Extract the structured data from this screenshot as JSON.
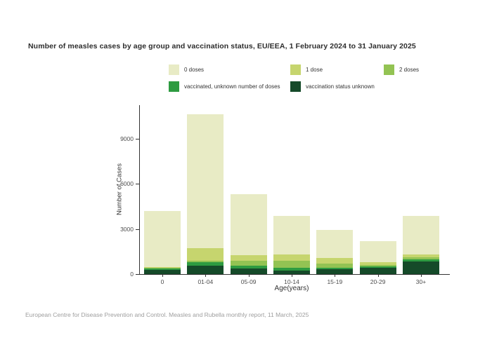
{
  "title": "Number of measles cases by age group and vaccination status, EU/EEA, 1 February 2024 to 31 January 2025",
  "footer": "European Centre for Disease Prevention and Control. Measles and Rubella monthly report, 11 March, 2025",
  "chart_data": {
    "type": "bar",
    "stacked": true,
    "title": "Number of measles cases by age group and vaccination status, EU/EEA, 1 February 2024 to 31 January 2025",
    "xlabel": "Age(years)",
    "ylabel": "Number of Cases",
    "categories": [
      "0",
      "01-04",
      "05-09",
      "10-14",
      "15-19",
      "20-29",
      "30+"
    ],
    "yticks": [
      0,
      3000,
      6000,
      9000
    ],
    "ylim": [
      0,
      11200
    ],
    "grid": false,
    "legend_position": "top",
    "series": [
      {
        "name": "0 doses",
        "color": "#e8ebc5",
        "values": [
          3745,
          8930,
          4050,
          2600,
          1895,
          1415,
          2555
        ]
      },
      {
        "name": "1 dose",
        "color": "#c6d56e",
        "values": [
          30,
          850,
          370,
          420,
          370,
          190,
          185
        ]
      },
      {
        "name": "2 doses",
        "color": "#93c353",
        "values": [
          25,
          90,
          330,
          460,
          280,
          95,
          140
        ]
      },
      {
        "name": "vaccinated, unknown number of doses",
        "color": "#2e9b41",
        "values": [
          120,
          230,
          190,
          190,
          95,
          95,
          150
        ]
      },
      {
        "name": "vaccination status unknown",
        "color": "#154a29",
        "values": [
          280,
          550,
          360,
          220,
          310,
          420,
          820
        ]
      }
    ],
    "stack_order_bottom_to_top": [
      "vaccination status unknown",
      "vaccinated, unknown number of doses",
      "2 doses",
      "1 dose",
      "0 doses"
    ],
    "totals": [
      4200,
      10650,
      5300,
      3890,
      2950,
      2215,
      3850
    ]
  }
}
